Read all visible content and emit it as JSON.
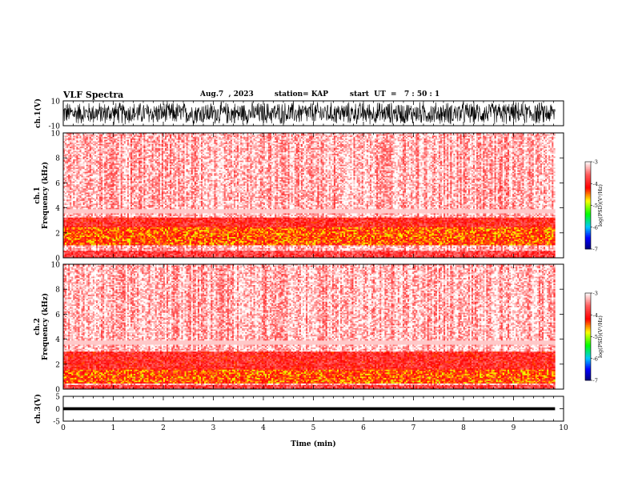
{
  "header": {
    "title": "VLF Spectra",
    "date": "Aug.7  , 2023",
    "station": "station= KAP",
    "start": "start  UT  =   7 : 50 : 1"
  },
  "chart_data": [
    {
      "type": "line",
      "ylabel": "ch.1(V)",
      "ylim": [
        -10,
        10
      ],
      "yticks": [
        "10",
        "-10"
      ],
      "xlim": [
        0,
        10
      ],
      "description_values": {
        "amplitude_range_V": [
          -10,
          10
        ],
        "duration_min": 9.83
      }
    },
    {
      "type": "heatmap",
      "ylabel": "ch.1\nFrequency (kHz)",
      "ylim": [
        0,
        10
      ],
      "yticks": [
        "0",
        "2",
        "4",
        "6",
        "8",
        "10"
      ],
      "xlim": [
        0,
        10
      ],
      "colorbar": {
        "label": "log(PSD)(V²/Hz)",
        "range": [
          -7,
          -3
        ],
        "ticks": [
          "-3",
          "-4",
          "-5",
          "-6",
          "-7"
        ]
      },
      "dominant_bands_kHz": [
        [
          1.0,
          3.2
        ]
      ],
      "background_level": -3.5
    },
    {
      "type": "heatmap",
      "ylabel": "ch.2\nFrequency (kHz)",
      "ylim": [
        0,
        10
      ],
      "yticks": [
        "0",
        "2",
        "4",
        "6",
        "8",
        "10"
      ],
      "xlim": [
        0,
        10
      ],
      "colorbar": {
        "label": "log(PSD)(V²/Hz)",
        "range": [
          -7,
          -3
        ],
        "ticks": [
          "-3",
          "-4",
          "-5",
          "-6",
          "-7"
        ]
      },
      "dominant_bands_kHz": [
        [
          0.5,
          3.0
        ]
      ],
      "background_level": -3.5
    },
    {
      "type": "line",
      "ylabel": "ch.3(V)",
      "ylim": [
        -5,
        5
      ],
      "yticks": [
        "5",
        "0",
        "-5"
      ],
      "xlim": [
        0,
        10
      ],
      "xticks": [
        "0",
        "1",
        "2",
        "3",
        "4",
        "5",
        "6",
        "7",
        "8",
        "9",
        "10"
      ],
      "xlabel": "Time  (min)",
      "level_V": [
        -0.6,
        0.6
      ]
    }
  ],
  "colors": {
    "signal": "#000000",
    "colormap": [
      "#0000ff",
      "#00ffff",
      "#00ff00",
      "#ffff00",
      "#ff0000",
      "#ffffff"
    ]
  }
}
